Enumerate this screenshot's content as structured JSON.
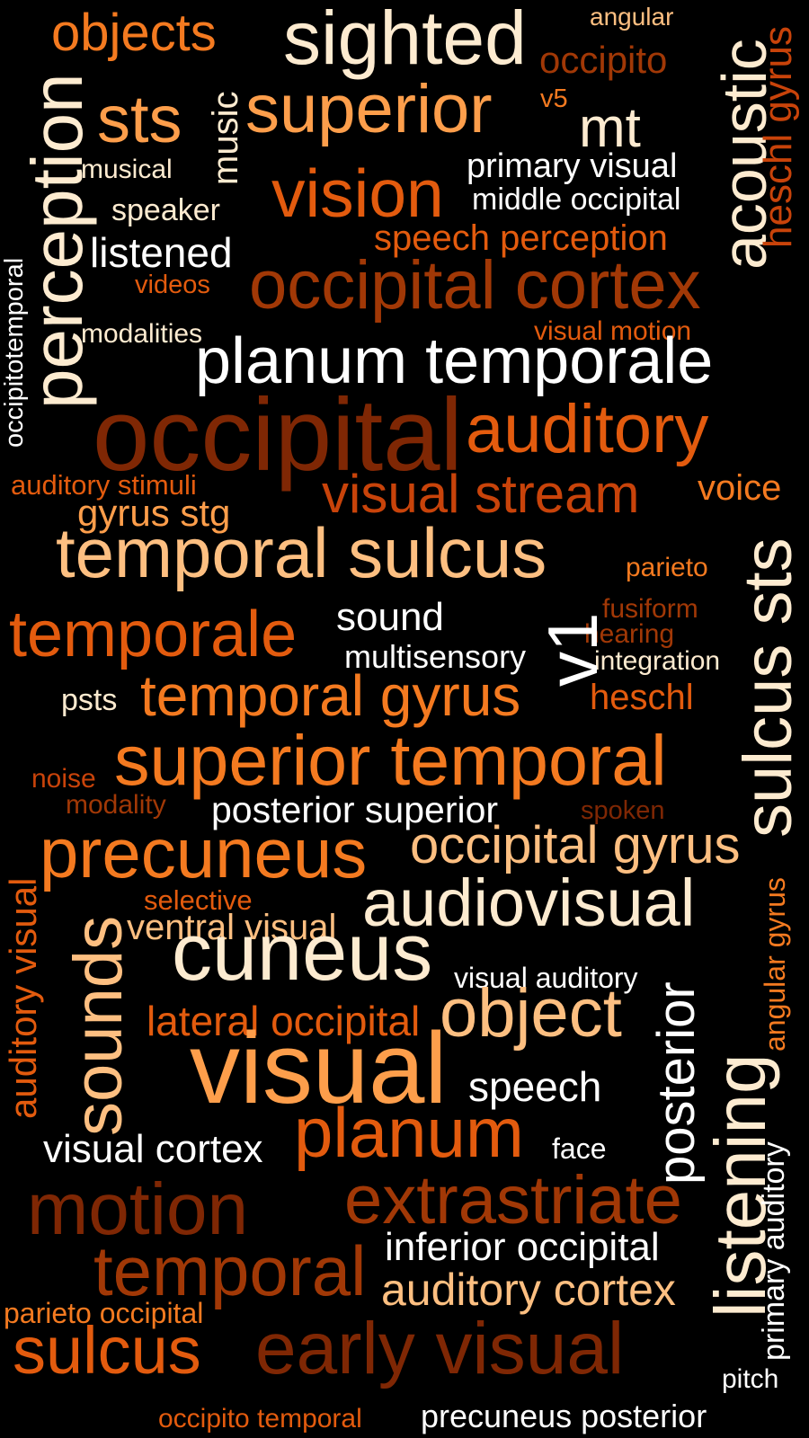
{
  "palette": {
    "background": "#000000",
    "cream": "#fdebd0",
    "white": "#ffffff",
    "peach": "#fdbf81",
    "light_orange": "#fd9e4b",
    "orange": "#f47a20",
    "dark_orange": "#e35b0e",
    "red_orange": "#c8430a",
    "brown": "#a13806",
    "dark_brown": "#7f2704"
  },
  "words": [
    {
      "id": "objects",
      "text": "objects"
    },
    {
      "id": "sighted",
      "text": "sighted"
    },
    {
      "id": "angular",
      "text": "angular"
    },
    {
      "id": "occipito",
      "text": "occipito"
    },
    {
      "id": "acoustic",
      "text": "acoustic"
    },
    {
      "id": "heschl_gyrus",
      "text": "heschl gyrus"
    },
    {
      "id": "sts",
      "text": "sts"
    },
    {
      "id": "music",
      "text": "music"
    },
    {
      "id": "superior",
      "text": "superior"
    },
    {
      "id": "v5",
      "text": "v5"
    },
    {
      "id": "mt",
      "text": "mt"
    },
    {
      "id": "perception",
      "text": "perception"
    },
    {
      "id": "musical",
      "text": "musical"
    },
    {
      "id": "primary_visual",
      "text": "primary visual"
    },
    {
      "id": "vision",
      "text": "vision"
    },
    {
      "id": "middle_occipital",
      "text": "middle occipital"
    },
    {
      "id": "speaker",
      "text": "speaker"
    },
    {
      "id": "occipitotemporal",
      "text": "occipitotemporal"
    },
    {
      "id": "speech_perception",
      "text": "speech perception"
    },
    {
      "id": "listened",
      "text": "listened"
    },
    {
      "id": "videos",
      "text": "videos"
    },
    {
      "id": "occipital_cortex",
      "text": "occipital cortex"
    },
    {
      "id": "modalities",
      "text": "modalities"
    },
    {
      "id": "visual_motion",
      "text": "visual motion"
    },
    {
      "id": "planum_temporale",
      "text": "planum temporale"
    },
    {
      "id": "occipital",
      "text": "occipital"
    },
    {
      "id": "auditory",
      "text": "auditory"
    },
    {
      "id": "auditory_stimuli",
      "text": "auditory stimuli"
    },
    {
      "id": "visual_stream",
      "text": "visual stream"
    },
    {
      "id": "voice",
      "text": "voice"
    },
    {
      "id": "gyrus_stg",
      "text": "gyrus stg"
    },
    {
      "id": "sulcus_sts",
      "text": "sulcus sts"
    },
    {
      "id": "temporal_sulcus",
      "text": "temporal sulcus"
    },
    {
      "id": "parieto",
      "text": "parieto"
    },
    {
      "id": "sound",
      "text": "sound"
    },
    {
      "id": "v1",
      "text": "v1"
    },
    {
      "id": "fusiform",
      "text": "fusiform"
    },
    {
      "id": "temporale",
      "text": "temporale"
    },
    {
      "id": "hearing",
      "text": "hearing"
    },
    {
      "id": "multisensory",
      "text": "multisensory"
    },
    {
      "id": "integration",
      "text": "integration"
    },
    {
      "id": "psts",
      "text": "psts"
    },
    {
      "id": "temporal_gyrus",
      "text": "temporal gyrus"
    },
    {
      "id": "heschl",
      "text": "heschl"
    },
    {
      "id": "superior_temporal",
      "text": "superior temporal"
    },
    {
      "id": "noise",
      "text": "noise"
    },
    {
      "id": "modality",
      "text": "modality"
    },
    {
      "id": "posterior_superior",
      "text": "posterior superior"
    },
    {
      "id": "spoken",
      "text": "spoken"
    },
    {
      "id": "auditory_visual",
      "text": "auditory visual"
    },
    {
      "id": "precuneus",
      "text": "precuneus"
    },
    {
      "id": "occipital_gyrus",
      "text": "occipital gyrus"
    },
    {
      "id": "angular_gyrus",
      "text": "angular gyrus"
    },
    {
      "id": "selective",
      "text": "selective"
    },
    {
      "id": "sounds",
      "text": "sounds"
    },
    {
      "id": "ventral_visual",
      "text": "ventral visual"
    },
    {
      "id": "audiovisual",
      "text": "audiovisual"
    },
    {
      "id": "cuneus",
      "text": "cuneus"
    },
    {
      "id": "visual_auditory",
      "text": "visual auditory"
    },
    {
      "id": "posterior",
      "text": "posterior"
    },
    {
      "id": "lateral_occipital",
      "text": "lateral occipital"
    },
    {
      "id": "object",
      "text": "object"
    },
    {
      "id": "visual",
      "text": "visual"
    },
    {
      "id": "listening",
      "text": "listening"
    },
    {
      "id": "speech",
      "text": "speech"
    },
    {
      "id": "primary_auditory",
      "text": "primary auditory"
    },
    {
      "id": "planum",
      "text": "planum"
    },
    {
      "id": "visual_cortex",
      "text": "visual cortex"
    },
    {
      "id": "face",
      "text": "face"
    },
    {
      "id": "motion",
      "text": "motion"
    },
    {
      "id": "extrastriate",
      "text": "extrastriate"
    },
    {
      "id": "temporal",
      "text": "temporal"
    },
    {
      "id": "inferior_occipital",
      "text": "inferior occipital"
    },
    {
      "id": "auditory_cortex",
      "text": "auditory cortex"
    },
    {
      "id": "parieto_occipital",
      "text": "parieto occipital"
    },
    {
      "id": "sulcus",
      "text": "sulcus"
    },
    {
      "id": "early_visual",
      "text": "early visual"
    },
    {
      "id": "pitch",
      "text": "pitch"
    },
    {
      "id": "occipito_temporal",
      "text": "occipito temporal"
    },
    {
      "id": "precuneus_posterior",
      "text": "precuneus posterior"
    }
  ]
}
